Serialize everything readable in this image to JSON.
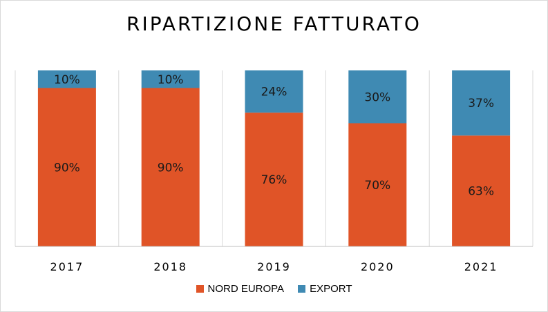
{
  "chart_data": {
    "type": "bar",
    "stacked": true,
    "percent": true,
    "title": "RIPARTIZIONE FATTURATO",
    "categories": [
      "2017",
      "2018",
      "2019",
      "2020",
      "2021"
    ],
    "series": [
      {
        "name": "NORD EUROPA",
        "values": [
          90,
          90,
          76,
          70,
          63
        ],
        "labels": [
          "90%",
          "90%",
          "76%",
          "70%",
          "63%"
        ],
        "color": "#e05427"
      },
      {
        "name": "EXPORT",
        "values": [
          10,
          10,
          24,
          30,
          37
        ],
        "labels": [
          "10%",
          "10%",
          "24%",
          "30%",
          "37%"
        ],
        "color": "#3f8ab3"
      }
    ],
    "ylim": [
      0,
      100
    ],
    "grid": "vertical",
    "legend": "bottom"
  }
}
